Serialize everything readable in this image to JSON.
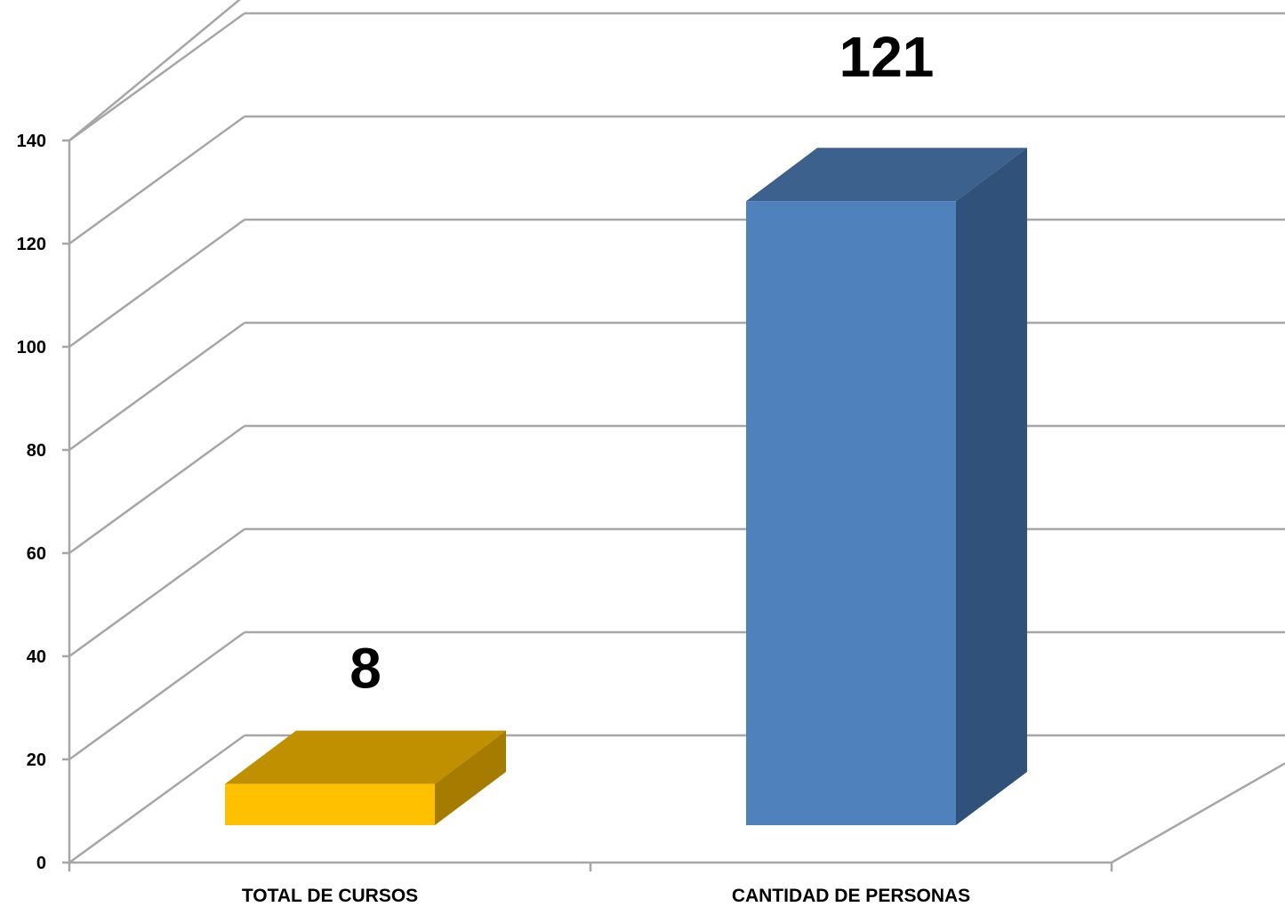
{
  "chart_data": {
    "type": "bar",
    "style": "3d-column",
    "categories": [
      "TOTAL DE CURSOS",
      "CANTIDAD DE PERSONAS"
    ],
    "values": [
      8,
      121
    ],
    "data_labels": [
      "8",
      "121"
    ],
    "title": "",
    "xlabel": "",
    "ylabel": "",
    "ylim": [
      0,
      140
    ],
    "yticks": [
      0,
      20,
      40,
      60,
      80,
      100,
      120,
      140
    ],
    "ytick_labels": [
      "0",
      "20",
      "40",
      "60",
      "80",
      "100",
      "120",
      "140"
    ],
    "grid": true,
    "legend": "none",
    "bar_colors": [
      {
        "front": "#FFC000",
        "top": "#C09000",
        "side": "#A67C00"
      },
      {
        "front": "#4F81BD",
        "top": "#3D618D",
        "side": "#30517A"
      }
    ],
    "grid_color": "#A6A6A6"
  }
}
